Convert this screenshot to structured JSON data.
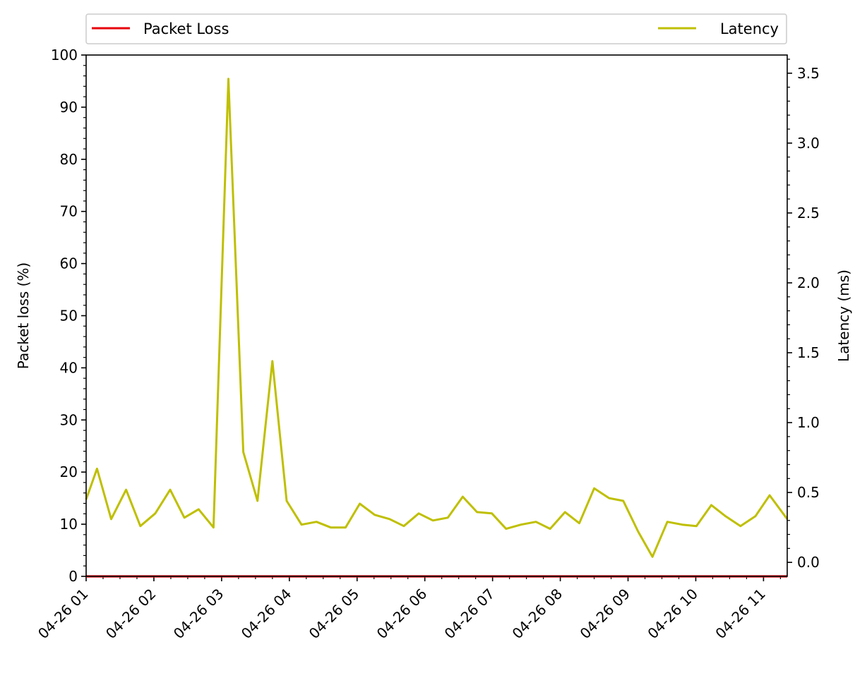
{
  "chart_data": {
    "type": "line",
    "title": "",
    "ylabel_left": "Packet loss (%)",
    "ylabel_right": "Latency (ms)",
    "xlabel": "",
    "x_ticks": [
      "04-26 01",
      "04-26 02",
      "04-26 03",
      "04-26 04",
      "04-26 05",
      "04-26 06",
      "04-26 07",
      "04-26 08",
      "04-26 09",
      "04-26 10",
      "04-26 11"
    ],
    "x_minor_per_major": 4,
    "x_range_hours": [
      0.0,
      10.35
    ],
    "ylim_left": [
      0,
      100
    ],
    "yticks_left": [
      0,
      10,
      20,
      30,
      40,
      50,
      60,
      70,
      80,
      90,
      100
    ],
    "ylim_right": [
      -0.1,
      3.63
    ],
    "yticks_right": [
      0.0,
      0.5,
      1.0,
      1.5,
      2.0,
      2.5,
      3.0,
      3.5
    ],
    "grid": false,
    "legend": {
      "placement": "top, above plot",
      "entries": [
        {
          "label": "Packet Loss",
          "color": "#e8000b"
        },
        {
          "label": "Latency",
          "color": "#bfbf00"
        }
      ]
    },
    "series": [
      {
        "name": "Packet Loss",
        "axis": "left",
        "color": "#e8000b",
        "x_hours": [
          0.0,
          10.35
        ],
        "values": [
          0,
          0
        ]
      },
      {
        "name": "Latency",
        "axis": "right",
        "axis_unit": "ms",
        "color": "#bfbf00",
        "x_hours": [
          0.0,
          0.16,
          0.37,
          0.59,
          0.8,
          1.02,
          1.24,
          1.45,
          1.66,
          1.88,
          2.1,
          2.32,
          2.53,
          2.75,
          2.96,
          3.18,
          3.4,
          3.61,
          3.83,
          4.04,
          4.26,
          4.48,
          4.69,
          4.91,
          5.12,
          5.34,
          5.56,
          5.77,
          5.99,
          6.2,
          6.42,
          6.64,
          6.85,
          7.07,
          7.28,
          7.5,
          7.72,
          7.93,
          8.15,
          8.36,
          8.58,
          8.8,
          9.01,
          9.23,
          9.44,
          9.66,
          9.88,
          10.09,
          10.35
        ],
        "values": [
          0.45,
          0.67,
          0.31,
          0.52,
          0.26,
          0.35,
          0.52,
          0.32,
          0.38,
          0.25,
          3.46,
          0.79,
          0.44,
          1.44,
          0.44,
          0.27,
          0.29,
          0.25,
          0.25,
          0.42,
          0.34,
          0.31,
          0.26,
          0.35,
          0.3,
          0.32,
          0.47,
          0.36,
          0.35,
          0.24,
          0.27,
          0.29,
          0.24,
          0.36,
          0.28,
          0.53,
          0.46,
          0.44,
          0.22,
          0.04,
          0.29,
          0.27,
          0.26,
          0.41,
          0.33,
          0.26,
          0.33,
          0.48,
          0.31
        ]
      }
    ]
  }
}
